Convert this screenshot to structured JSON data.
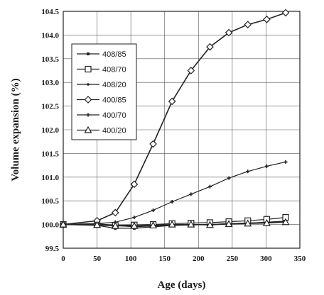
{
  "chart_data": {
    "type": "line",
    "xlabel": "Age (days)",
    "ylabel": "Volume expansion (%)",
    "xlim": [
      0,
      350
    ],
    "ylim": [
      99.5,
      104.5
    ],
    "xticks": [
      "0",
      "50",
      "100",
      "150",
      "200",
      "250",
      "300",
      "350"
    ],
    "yticks": [
      "99.5",
      "100.0",
      "100.5",
      "101.0",
      "101.5",
      "102.0",
      "102.5",
      "103.0",
      "103.5",
      "104.0",
      "104.5"
    ],
    "grid": true,
    "legend_position": "top-left",
    "series": [
      {
        "name": "408/85",
        "marker": "small-square",
        "x": [
          0,
          50,
          77,
          105,
          133,
          161,
          189,
          217,
          245,
          273,
          301,
          329
        ],
        "y": [
          100.0,
          99.98,
          99.92,
          99.92,
          99.95,
          99.98,
          99.99,
          100.0,
          100.02,
          100.03,
          100.05,
          100.07
        ]
      },
      {
        "name": "408/70",
        "marker": "square",
        "x": [
          0,
          50,
          77,
          105,
          133,
          161,
          189,
          217,
          245,
          273,
          301,
          329
        ],
        "y": [
          100.0,
          100.0,
          99.98,
          99.99,
          100.0,
          100.02,
          100.03,
          100.04,
          100.06,
          100.08,
          100.11,
          100.15
        ]
      },
      {
        "name": "408/20",
        "marker": "dot",
        "x": [
          0,
          50,
          77,
          105,
          133,
          161,
          189,
          217,
          245,
          273,
          301,
          329
        ],
        "y": [
          100.0,
          100.02,
          99.98,
          99.95,
          99.97,
          99.99,
          100.0,
          100.0,
          100.02,
          100.03,
          100.04,
          100.06
        ]
      },
      {
        "name": "400/85",
        "marker": "diamond",
        "x": [
          0,
          50,
          77,
          105,
          133,
          161,
          189,
          217,
          245,
          273,
          301,
          329
        ],
        "y": [
          100.0,
          100.08,
          100.25,
          100.85,
          101.7,
          102.6,
          103.25,
          103.75,
          104.05,
          104.22,
          104.33,
          104.47
        ]
      },
      {
        "name": "400/70",
        "marker": "plus",
        "x": [
          0,
          50,
          77,
          105,
          133,
          161,
          189,
          217,
          245,
          273,
          301,
          329
        ],
        "y": [
          100.0,
          100.02,
          100.05,
          100.15,
          100.3,
          100.48,
          100.64,
          100.8,
          100.98,
          101.12,
          101.23,
          101.32
        ]
      },
      {
        "name": "400/20",
        "marker": "triangle",
        "x": [
          0,
          50,
          77,
          105,
          133,
          161,
          189,
          217,
          245,
          273,
          301,
          329
        ],
        "y": [
          100.0,
          99.99,
          99.97,
          99.97,
          99.98,
          100.0,
          100.0,
          99.99,
          100.01,
          100.02,
          100.03,
          100.05
        ]
      }
    ]
  }
}
